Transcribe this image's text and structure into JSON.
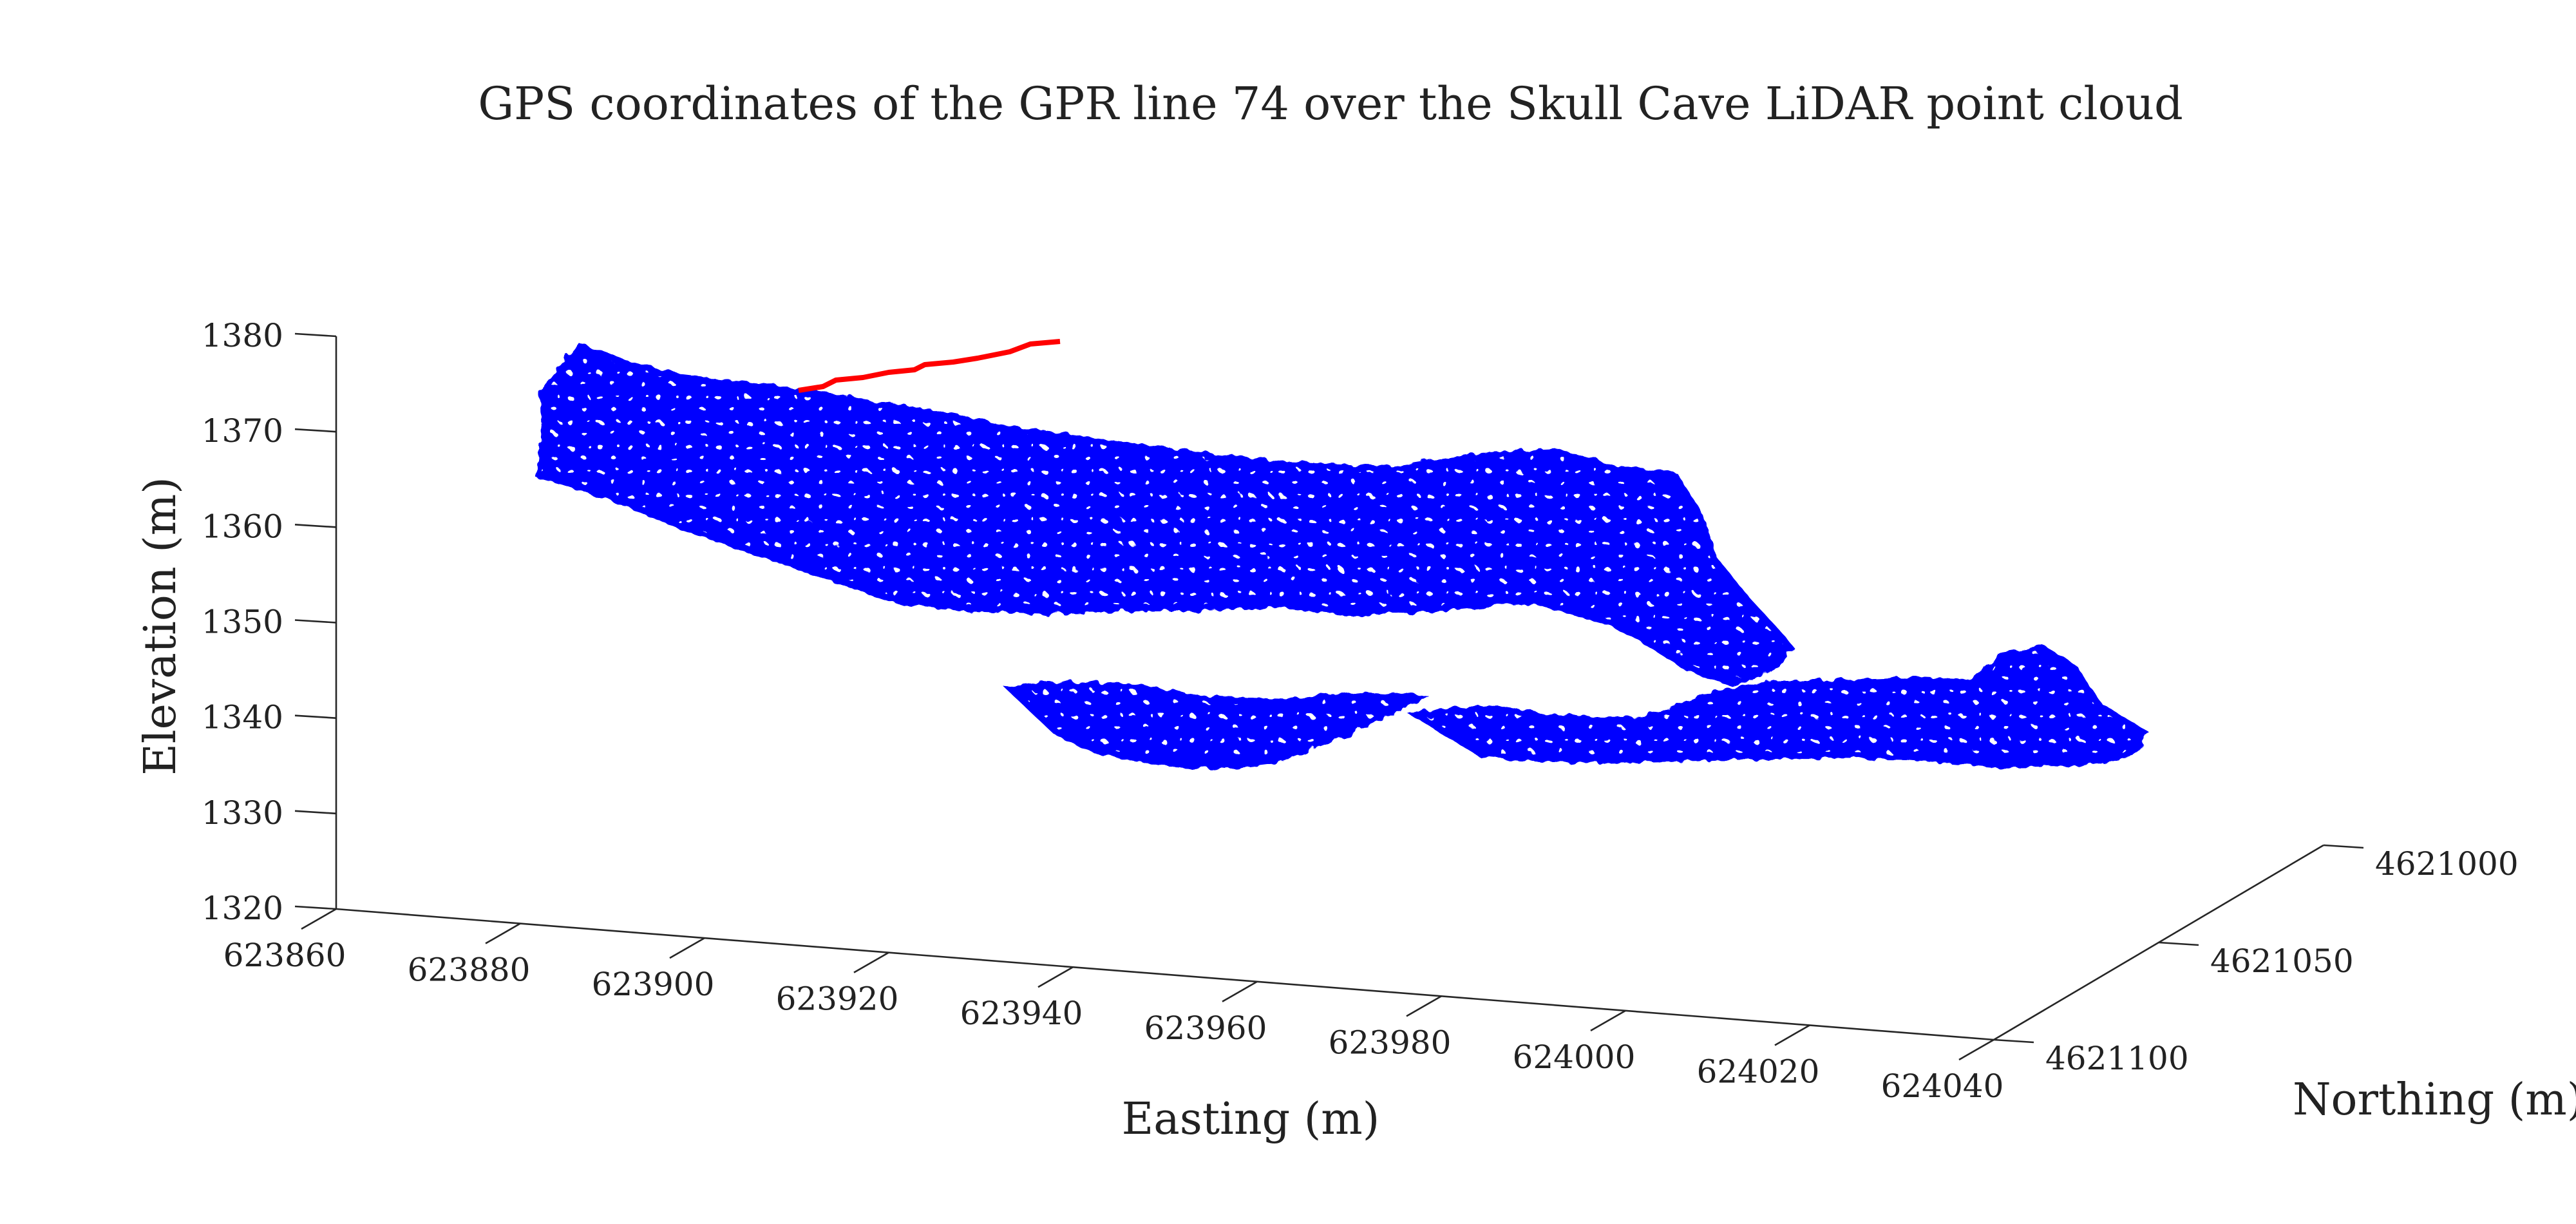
{
  "chart_data": {
    "type": "scatter",
    "title": "GPS coordinates of the GPR line 74 over the Skull Cave LiDAR point cloud",
    "xlabel": "Easting (m)",
    "ylabel": "Northing (m)",
    "zlabel": "Elevation (m)",
    "xlim": [
      623860,
      624040
    ],
    "ylim": [
      4621000,
      4621100
    ],
    "zlim": [
      1320,
      1380
    ],
    "xticks": [
      "623860",
      "623880",
      "623900",
      "623920",
      "623940",
      "623960",
      "623980",
      "624000",
      "624020",
      "624040"
    ],
    "yticks": [
      "4621000",
      "4621050",
      "4621100"
    ],
    "zticks": [
      "1320",
      "1330",
      "1340",
      "1350",
      "1360",
      "1370",
      "1380"
    ],
    "grid": false,
    "series": [
      {
        "kind": "points",
        "color": "#0000ff",
        "description": "LiDAR point cloud (cave surface)"
      },
      {
        "kind": "line",
        "color": "#ff0000",
        "description": "GPR line 74 GPS track"
      }
    ]
  }
}
